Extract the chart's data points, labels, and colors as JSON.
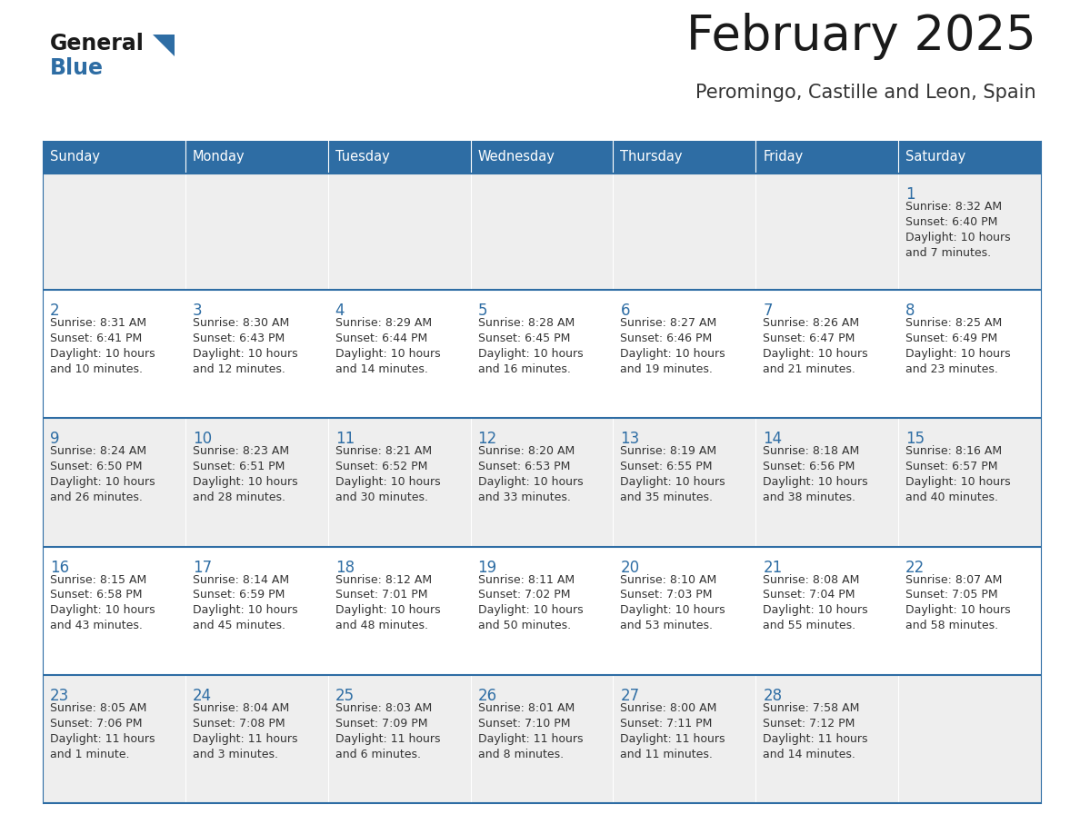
{
  "title": "February 2025",
  "subtitle": "Peromingo, Castille and Leon, Spain",
  "header_bg": "#2E6DA4",
  "header_text_color": "#FFFFFF",
  "day_names": [
    "Sunday",
    "Monday",
    "Tuesday",
    "Wednesday",
    "Thursday",
    "Friday",
    "Saturday"
  ],
  "cell_bg_even": "#EEEEEE",
  "cell_bg_odd": "#FFFFFF",
  "title_color": "#1a1a1a",
  "subtitle_color": "#333333",
  "day_number_color": "#2E6DA4",
  "info_color": "#333333",
  "line_color": "#2E6DA4",
  "logo_general_color": "#1a1a1a",
  "logo_blue_color": "#2E6DA4",
  "calendar_data": [
    [
      null,
      null,
      null,
      null,
      null,
      null,
      {
        "day": "1",
        "sunrise": "8:32 AM",
        "sunset": "6:40 PM",
        "daylight_line1": "Daylight: 10 hours",
        "daylight_line2": "and 7 minutes."
      }
    ],
    [
      {
        "day": "2",
        "sunrise": "8:31 AM",
        "sunset": "6:41 PM",
        "daylight_line1": "Daylight: 10 hours",
        "daylight_line2": "and 10 minutes."
      },
      {
        "day": "3",
        "sunrise": "8:30 AM",
        "sunset": "6:43 PM",
        "daylight_line1": "Daylight: 10 hours",
        "daylight_line2": "and 12 minutes."
      },
      {
        "day": "4",
        "sunrise": "8:29 AM",
        "sunset": "6:44 PM",
        "daylight_line1": "Daylight: 10 hours",
        "daylight_line2": "and 14 minutes."
      },
      {
        "day": "5",
        "sunrise": "8:28 AM",
        "sunset": "6:45 PM",
        "daylight_line1": "Daylight: 10 hours",
        "daylight_line2": "and 16 minutes."
      },
      {
        "day": "6",
        "sunrise": "8:27 AM",
        "sunset": "6:46 PM",
        "daylight_line1": "Daylight: 10 hours",
        "daylight_line2": "and 19 minutes."
      },
      {
        "day": "7",
        "sunrise": "8:26 AM",
        "sunset": "6:47 PM",
        "daylight_line1": "Daylight: 10 hours",
        "daylight_line2": "and 21 minutes."
      },
      {
        "day": "8",
        "sunrise": "8:25 AM",
        "sunset": "6:49 PM",
        "daylight_line1": "Daylight: 10 hours",
        "daylight_line2": "and 23 minutes."
      }
    ],
    [
      {
        "day": "9",
        "sunrise": "8:24 AM",
        "sunset": "6:50 PM",
        "daylight_line1": "Daylight: 10 hours",
        "daylight_line2": "and 26 minutes."
      },
      {
        "day": "10",
        "sunrise": "8:23 AM",
        "sunset": "6:51 PM",
        "daylight_line1": "Daylight: 10 hours",
        "daylight_line2": "and 28 minutes."
      },
      {
        "day": "11",
        "sunrise": "8:21 AM",
        "sunset": "6:52 PM",
        "daylight_line1": "Daylight: 10 hours",
        "daylight_line2": "and 30 minutes."
      },
      {
        "day": "12",
        "sunrise": "8:20 AM",
        "sunset": "6:53 PM",
        "daylight_line1": "Daylight: 10 hours",
        "daylight_line2": "and 33 minutes."
      },
      {
        "day": "13",
        "sunrise": "8:19 AM",
        "sunset": "6:55 PM",
        "daylight_line1": "Daylight: 10 hours",
        "daylight_line2": "and 35 minutes."
      },
      {
        "day": "14",
        "sunrise": "8:18 AM",
        "sunset": "6:56 PM",
        "daylight_line1": "Daylight: 10 hours",
        "daylight_line2": "and 38 minutes."
      },
      {
        "day": "15",
        "sunrise": "8:16 AM",
        "sunset": "6:57 PM",
        "daylight_line1": "Daylight: 10 hours",
        "daylight_line2": "and 40 minutes."
      }
    ],
    [
      {
        "day": "16",
        "sunrise": "8:15 AM",
        "sunset": "6:58 PM",
        "daylight_line1": "Daylight: 10 hours",
        "daylight_line2": "and 43 minutes."
      },
      {
        "day": "17",
        "sunrise": "8:14 AM",
        "sunset": "6:59 PM",
        "daylight_line1": "Daylight: 10 hours",
        "daylight_line2": "and 45 minutes."
      },
      {
        "day": "18",
        "sunrise": "8:12 AM",
        "sunset": "7:01 PM",
        "daylight_line1": "Daylight: 10 hours",
        "daylight_line2": "and 48 minutes."
      },
      {
        "day": "19",
        "sunrise": "8:11 AM",
        "sunset": "7:02 PM",
        "daylight_line1": "Daylight: 10 hours",
        "daylight_line2": "and 50 minutes."
      },
      {
        "day": "20",
        "sunrise": "8:10 AM",
        "sunset": "7:03 PM",
        "daylight_line1": "Daylight: 10 hours",
        "daylight_line2": "and 53 minutes."
      },
      {
        "day": "21",
        "sunrise": "8:08 AM",
        "sunset": "7:04 PM",
        "daylight_line1": "Daylight: 10 hours",
        "daylight_line2": "and 55 minutes."
      },
      {
        "day": "22",
        "sunrise": "8:07 AM",
        "sunset": "7:05 PM",
        "daylight_line1": "Daylight: 10 hours",
        "daylight_line2": "and 58 minutes."
      }
    ],
    [
      {
        "day": "23",
        "sunrise": "8:05 AM",
        "sunset": "7:06 PM",
        "daylight_line1": "Daylight: 11 hours",
        "daylight_line2": "and 1 minute."
      },
      {
        "day": "24",
        "sunrise": "8:04 AM",
        "sunset": "7:08 PM",
        "daylight_line1": "Daylight: 11 hours",
        "daylight_line2": "and 3 minutes."
      },
      {
        "day": "25",
        "sunrise": "8:03 AM",
        "sunset": "7:09 PM",
        "daylight_line1": "Daylight: 11 hours",
        "daylight_line2": "and 6 minutes."
      },
      {
        "day": "26",
        "sunrise": "8:01 AM",
        "sunset": "7:10 PM",
        "daylight_line1": "Daylight: 11 hours",
        "daylight_line2": "and 8 minutes."
      },
      {
        "day": "27",
        "sunrise": "8:00 AM",
        "sunset": "7:11 PM",
        "daylight_line1": "Daylight: 11 hours",
        "daylight_line2": "and 11 minutes."
      },
      {
        "day": "28",
        "sunrise": "7:58 AM",
        "sunset": "7:12 PM",
        "daylight_line1": "Daylight: 11 hours",
        "daylight_line2": "and 14 minutes."
      },
      null
    ]
  ]
}
